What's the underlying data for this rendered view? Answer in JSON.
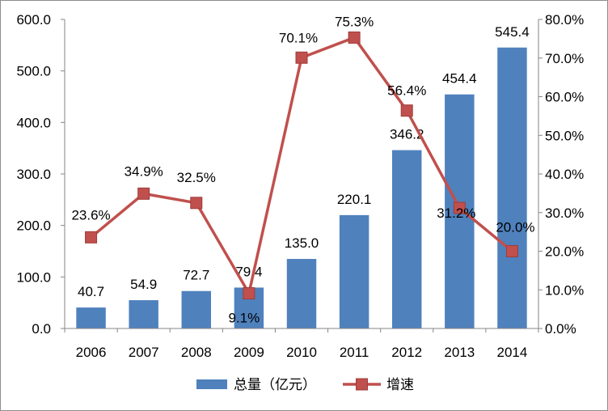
{
  "chart_data": {
    "type": "bar+line",
    "categories": [
      "2006",
      "2007",
      "2008",
      "2009",
      "2010",
      "2011",
      "2012",
      "2013",
      "2014"
    ],
    "series": [
      {
        "name": "总量（亿元）",
        "type": "bar",
        "axis": "left",
        "color": "#4F81BD",
        "values": [
          40.7,
          54.9,
          72.7,
          79.4,
          135.0,
          220.1,
          346.2,
          454.4,
          545.4
        ],
        "labels": [
          "40.7",
          "54.9",
          "72.7",
          "79.4",
          "135.0",
          "220.1",
          "346.2",
          "454.4",
          "545.4"
        ]
      },
      {
        "name": "增速",
        "type": "line",
        "axis": "right",
        "color": "#C0504D",
        "values": [
          23.6,
          34.9,
          32.5,
          9.1,
          70.1,
          75.3,
          56.4,
          31.2,
          20.0
        ],
        "labels": [
          "23.6%",
          "34.9%",
          "32.5%",
          "9.1%",
          "70.1%",
          "75.3%",
          "56.4%",
          "31.2%",
          "20.0%"
        ]
      }
    ],
    "y_left": {
      "min": 0,
      "max": 600,
      "ticks": [
        0,
        100,
        200,
        300,
        400,
        500,
        600
      ],
      "tick_labels": [
        "0.0",
        "100.0",
        "200.0",
        "300.0",
        "400.0",
        "500.0",
        "600.0"
      ]
    },
    "y_right": {
      "min": 0,
      "max": 80,
      "ticks": [
        0,
        10,
        20,
        30,
        40,
        50,
        60,
        70,
        80
      ],
      "tick_labels": [
        "0.0%",
        "10.0%",
        "20.0%",
        "30.0%",
        "40.0%",
        "50.0%",
        "60.0%",
        "70.0%",
        "80.0%"
      ]
    },
    "grid": false,
    "legend": "bottom"
  }
}
